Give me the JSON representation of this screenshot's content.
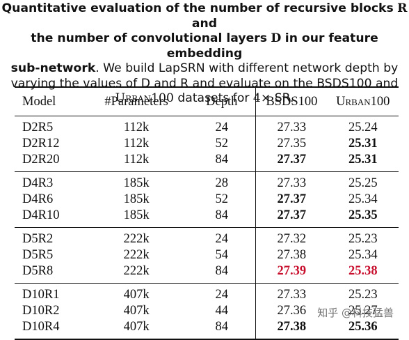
{
  "caption": {
    "line1": "Quantitative evaluation of the number of recursive blocks",
    "line1_var": "R",
    "line1_end": "and",
    "line2": "the number of convolutional layers",
    "line2_var": "D",
    "line2_end": "in our feature embedding",
    "line3_bold": "sub-network",
    "line3_rest": ". We build LapSRN with different network depth by",
    "line4": "varying the values of D and R and evaluate on the BSDS100 and",
    "line5_sc": "Urban100",
    "line5_mid": "datasets for",
    "line5_math": "4×",
    "line5_end": "SR."
  },
  "table": {
    "headers": [
      "Model",
      "#Parameters",
      "Depth",
      "BSDS100",
      "Urban100"
    ],
    "groups": [
      [
        {
          "model": "D2R5",
          "params": "112k",
          "depth": "24",
          "bsds": "27.33",
          "urban": "25.24",
          "bsds_style": "",
          "urban_style": ""
        },
        {
          "model": "D2R12",
          "params": "112k",
          "depth": "52",
          "bsds": "27.35",
          "urban": "25.31",
          "bsds_style": "",
          "urban_style": "bold"
        },
        {
          "model": "D2R20",
          "params": "112k",
          "depth": "84",
          "bsds": "27.37",
          "urban": "25.31",
          "bsds_style": "bold",
          "urban_style": "bold"
        }
      ],
      [
        {
          "model": "D4R3",
          "params": "185k",
          "depth": "28",
          "bsds": "27.33",
          "urban": "25.25",
          "bsds_style": "",
          "urban_style": ""
        },
        {
          "model": "D4R6",
          "params": "185k",
          "depth": "52",
          "bsds": "27.37",
          "urban": "25.34",
          "bsds_style": "bold",
          "urban_style": ""
        },
        {
          "model": "D4R10",
          "params": "185k",
          "depth": "84",
          "bsds": "27.37",
          "urban": "25.35",
          "bsds_style": "bold",
          "urban_style": "bold"
        }
      ],
      [
        {
          "model": "D5R2",
          "params": "222k",
          "depth": "24",
          "bsds": "27.32",
          "urban": "25.23",
          "bsds_style": "",
          "urban_style": ""
        },
        {
          "model": "D5R5",
          "params": "222k",
          "depth": "54",
          "bsds": "27.38",
          "urban": "25.34",
          "bsds_style": "",
          "urban_style": ""
        },
        {
          "model": "D5R8",
          "params": "222k",
          "depth": "84",
          "bsds": "27.39",
          "urban": "25.38",
          "bsds_style": "red",
          "urban_style": "red"
        }
      ],
      [
        {
          "model": "D10R1",
          "params": "407k",
          "depth": "24",
          "bsds": "27.33",
          "urban": "25.23",
          "bsds_style": "",
          "urban_style": ""
        },
        {
          "model": "D10R2",
          "params": "407k",
          "depth": "44",
          "bsds": "27.36",
          "urban": "25.27",
          "bsds_style": "",
          "urban_style": ""
        },
        {
          "model": "D10R4",
          "params": "407k",
          "depth": "84",
          "bsds": "27.38",
          "urban": "25.36",
          "bsds_style": "bold",
          "urban_style": "bold"
        }
      ]
    ]
  },
  "watermark": "知乎 @科技猛兽",
  "colors": {
    "highlight_red": "#c8102e",
    "text": "#111111"
  }
}
